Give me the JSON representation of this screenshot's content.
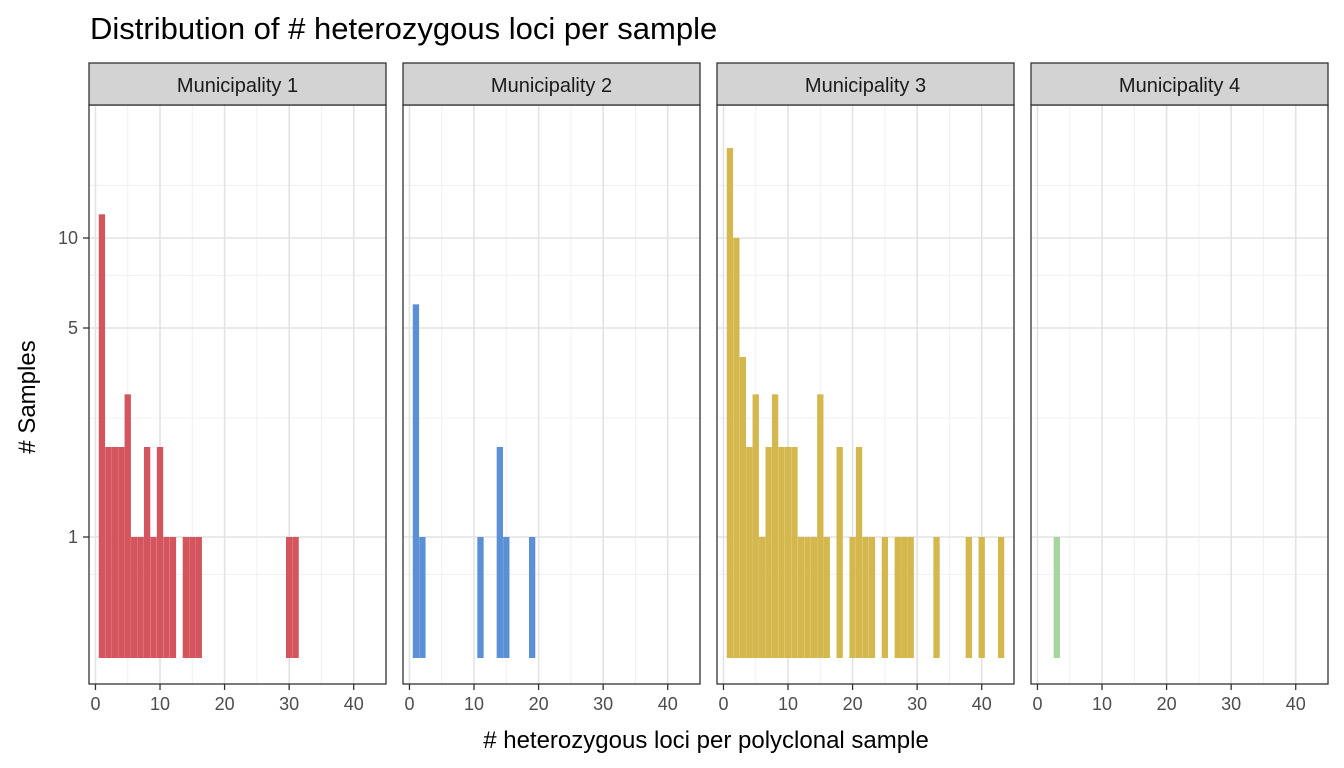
{
  "chart_data": {
    "type": "bar",
    "title": "Distribution of # heterozygous loci per sample",
    "xlabel": "# heterozygous loci per polyclonal sample",
    "ylabel": "# Samples",
    "y_scale": "log",
    "y_ticks": [
      1,
      5,
      10
    ],
    "x_ticks": [
      0,
      10,
      20,
      30,
      40
    ],
    "xlim": [
      -1,
      45
    ],
    "grid": true,
    "legend": "none",
    "panels": [
      {
        "name": "Municipality 1",
        "color": "#d5555e",
        "x": [
          1,
          2,
          3,
          4,
          5,
          6,
          7,
          8,
          9,
          10,
          11,
          12,
          14,
          15,
          16,
          30,
          31
        ],
        "y": [
          12,
          2,
          2,
          2,
          3,
          1,
          1,
          2,
          1,
          2,
          1,
          1,
          1,
          1,
          1,
          1,
          1
        ]
      },
      {
        "name": "Municipality 2",
        "color": "#5b8fd6",
        "x": [
          1,
          2,
          11,
          14,
          15,
          19
        ],
        "y": [
          6,
          1,
          1,
          2,
          1,
          1
        ]
      },
      {
        "name": "Municipality 3",
        "color": "#d4b84d",
        "x": [
          1,
          2,
          3,
          4,
          5,
          6,
          7,
          8,
          9,
          10,
          11,
          12,
          13,
          14,
          15,
          16,
          18,
          20,
          21,
          22,
          23,
          25,
          27,
          28,
          29,
          33,
          38,
          40,
          43
        ],
        "y": [
          20,
          10,
          4,
          2,
          3,
          1,
          2,
          3,
          2,
          2,
          2,
          1,
          1,
          1,
          3,
          1,
          2,
          1,
          2,
          1,
          1,
          1,
          1,
          1,
          1,
          1,
          1,
          1,
          1
        ]
      },
      {
        "name": "Municipality 4",
        "color": "#a8d4a0",
        "x": [
          3
        ],
        "y": [
          1
        ]
      }
    ]
  }
}
